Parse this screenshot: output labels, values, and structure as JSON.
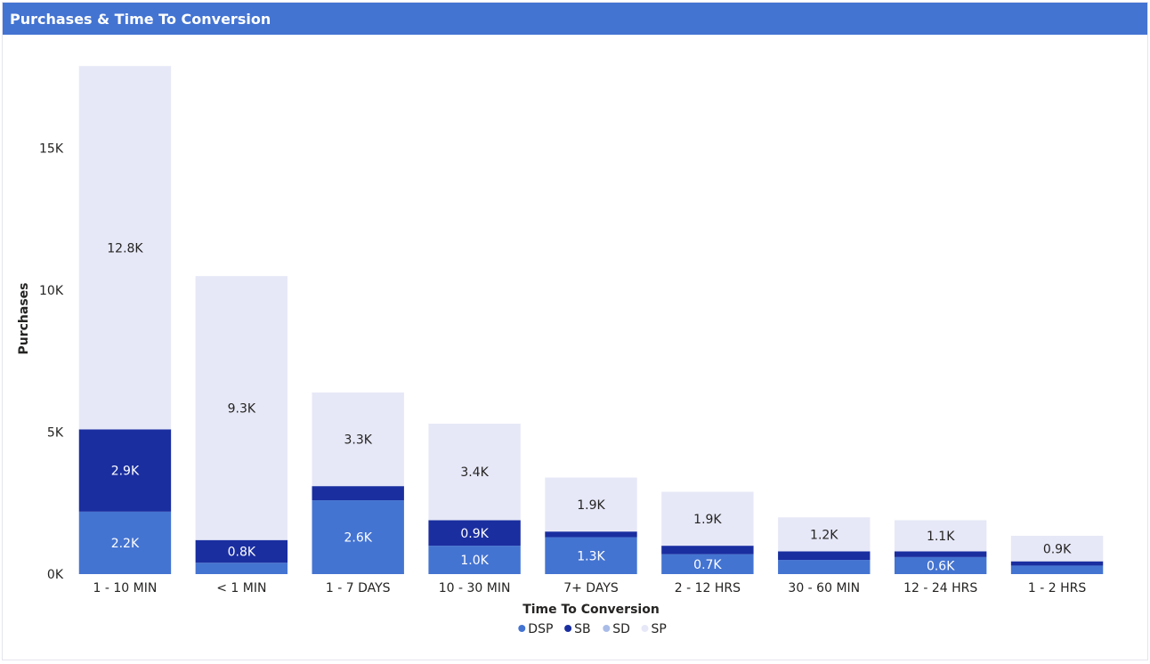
{
  "header": {
    "title": "Purchases & Time To Conversion"
  },
  "chart_data": {
    "type": "bar",
    "stacked": true,
    "title": "Purchases & Time To Conversion",
    "xlabel": "Time To Conversion",
    "ylabel": "Purchases",
    "ylim": [
      0,
      18000
    ],
    "yticks": [
      0,
      5000,
      10000,
      15000
    ],
    "ytick_labels": [
      "0K",
      "5K",
      "10K",
      "15K"
    ],
    "grid": false,
    "legend_position": "bottom",
    "categories": [
      "1 - 10 MIN",
      "< 1 MIN",
      "1 - 7 DAYS",
      "10 - 30 MIN",
      "7+ DAYS",
      "2 - 12 HRS",
      "30 - 60 MIN",
      "12 - 24 HRS",
      "1 - 2 HRS"
    ],
    "series": [
      {
        "name": "DSP",
        "color": "#4474d2",
        "values": [
          2200,
          400,
          2600,
          1000,
          1300,
          700,
          500,
          600,
          300
        ],
        "labels": [
          "2.2K",
          "",
          "2.6K",
          "1.0K",
          "1.3K",
          "0.7K",
          "",
          "0.6K",
          ""
        ]
      },
      {
        "name": "SB",
        "color": "#1a2ea0",
        "values": [
          2900,
          800,
          500,
          900,
          200,
          300,
          300,
          200,
          150
        ],
        "labels": [
          "2.9K",
          "0.8K",
          "",
          "0.9K",
          "",
          "",
          "",
          "",
          ""
        ]
      },
      {
        "name": "SD",
        "color": "#a9bce8",
        "values": [
          0,
          0,
          0,
          0,
          0,
          0,
          0,
          0,
          0
        ],
        "labels": [
          "",
          "",
          "",
          "",
          "",
          "",
          "",
          "",
          ""
        ]
      },
      {
        "name": "SP",
        "color": "#e6e8f7",
        "values": [
          12800,
          9300,
          3300,
          3400,
          1900,
          1900,
          1200,
          1100,
          900
        ],
        "labels": [
          "12.8K",
          "9.3K",
          "3.3K",
          "3.4K",
          "1.9K",
          "1.9K",
          "1.2K",
          "1.1K",
          "0.9K"
        ]
      }
    ]
  }
}
